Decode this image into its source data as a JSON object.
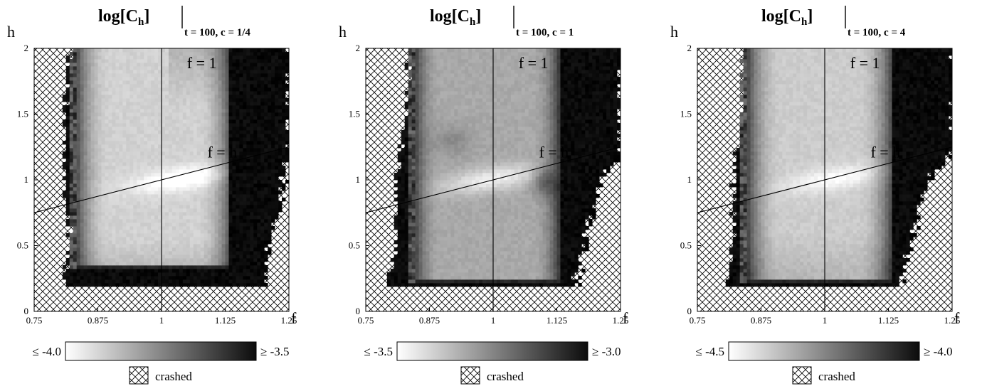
{
  "chart_data": [
    {
      "type": "heatmap",
      "title_main": "log[C",
      "title_sub": "h",
      "title_close": "]",
      "title_cond": "t = 100, c = 1/4",
      "xlabel": "f",
      "ylabel": "h",
      "xlim": [
        0.75,
        1.25
      ],
      "ylim": [
        0,
        2
      ],
      "x_ticks": [
        "0.75",
        "0.875",
        "1",
        "1.125",
        "1.25"
      ],
      "x_tick_values": [
        0.75,
        0.875,
        1,
        1.125,
        1.25
      ],
      "y_ticks": [
        "0",
        "0.5",
        "1",
        "1.5",
        "2"
      ],
      "y_tick_values": [
        0,
        0.5,
        1,
        1.5,
        2
      ],
      "lines": [
        {
          "label": "f = 1",
          "x": [
            1,
            1
          ],
          "y": [
            0,
            2
          ],
          "label_at": [
            1.05,
            1.85
          ]
        },
        {
          "label": "f = h",
          "x": [
            0.75,
            1.25
          ],
          "y": [
            0.75,
            1.25
          ],
          "label_at": [
            1.09,
            1.17
          ]
        }
      ],
      "colorbar": {
        "min_label": "≤ -4.0",
        "max_label": "≥ -3.5",
        "min": -4.0,
        "max": -3.5
      },
      "crashed_label": "crashed",
      "valid_region": {
        "bottom_h": 0.19,
        "bottom_f": [
          0.8,
          1.2
        ],
        "left_f": [
          [
            0,
            0.8
          ],
          [
            0.5,
            0.82
          ],
          [
            1,
            0.81
          ],
          [
            1.5,
            0.81
          ],
          [
            2,
            0.82
          ]
        ],
        "right_f": [
          [
            0.19,
            1.2
          ],
          [
            0.5,
            1.21
          ],
          [
            1.0,
            1.24
          ],
          [
            1.2,
            1.25
          ],
          [
            1.55,
            1.25
          ],
          [
            2,
            1.25
          ]
        ]
      },
      "core_region": {
        "f": [
          0.835,
          1.135
        ],
        "h_min": 0.33,
        "h_max": 2
      },
      "bright_ridge": {
        "f0": 1.04,
        "h0": 1.01
      }
    },
    {
      "type": "heatmap",
      "title_main": "log[C",
      "title_sub": "h",
      "title_close": "]",
      "title_cond": "t = 100, c = 1",
      "xlabel": "f",
      "ylabel": "h",
      "xlim": [
        0.75,
        1.25
      ],
      "ylim": [
        0,
        2
      ],
      "x_ticks": [
        "0.75",
        "0.875",
        "1",
        "1.125",
        "1.25"
      ],
      "x_tick_values": [
        0.75,
        0.875,
        1,
        1.125,
        1.25
      ],
      "y_ticks": [
        "0",
        "0.5",
        "1",
        "1.5",
        "2"
      ],
      "y_tick_values": [
        0,
        0.5,
        1,
        1.5,
        2
      ],
      "lines": [
        {
          "label": "f = 1",
          "x": [
            1,
            1
          ],
          "y": [
            0,
            2
          ],
          "label_at": [
            1.05,
            1.85
          ]
        },
        {
          "label": "f = h",
          "x": [
            0.75,
            1.25
          ],
          "y": [
            0.75,
            1.25
          ],
          "label_at": [
            1.09,
            1.17
          ]
        }
      ],
      "colorbar": {
        "min_label": "≤ -3.5",
        "max_label": "≥ -3.0",
        "min": -3.5,
        "max": -3.0
      },
      "crashed_label": "crashed",
      "valid_region": {
        "bottom_h": 0.19,
        "bottom_f": [
          0.79,
          1.16
        ],
        "left_f": [
          [
            0.19,
            0.79
          ],
          [
            0.5,
            0.81
          ],
          [
            1,
            0.81
          ],
          [
            1.5,
            0.83
          ],
          [
            2,
            0.835
          ]
        ],
        "right_f": [
          [
            0.19,
            1.16
          ],
          [
            0.5,
            1.18
          ],
          [
            1.0,
            1.21
          ],
          [
            1.2,
            1.25
          ],
          [
            1.55,
            1.25
          ],
          [
            2,
            1.25
          ]
        ]
      },
      "core_region": {
        "f": [
          0.845,
          1.13
        ],
        "h_min": 0.21,
        "h_max": 2
      },
      "bright_ridge": {
        "f0": 1.0,
        "h0": 1.01
      }
    },
    {
      "type": "heatmap",
      "title_main": "log[C",
      "title_sub": "h",
      "title_close": "]",
      "title_cond": "t = 100, c = 4",
      "xlabel": "f",
      "ylabel": "h",
      "xlim": [
        0.75,
        1.25
      ],
      "ylim": [
        0,
        2
      ],
      "x_ticks": [
        "0.75",
        "0.875",
        "1",
        "1.125",
        "1.25"
      ],
      "x_tick_values": [
        0.75,
        0.875,
        1,
        1.125,
        1.25
      ],
      "y_ticks": [
        "0",
        "0.5",
        "1",
        "1.5",
        "2"
      ],
      "y_tick_values": [
        0,
        0.5,
        1,
        1.5,
        2
      ],
      "lines": [
        {
          "label": "f = 1",
          "x": [
            1,
            1
          ],
          "y": [
            0,
            2
          ],
          "label_at": [
            1.05,
            1.85
          ]
        },
        {
          "label": "f = h",
          "x": [
            0.75,
            1.25
          ],
          "y": [
            0.75,
            1.25
          ],
          "label_at": [
            1.09,
            1.17
          ]
        }
      ],
      "colorbar": {
        "min_label": "≤ -4.5",
        "max_label": "≥ -4.0",
        "min": -4.5,
        "max": -4.0
      },
      "crashed_label": "crashed",
      "valid_region": {
        "bottom_h": 0.19,
        "bottom_f": [
          0.805,
          1.15
        ],
        "left_f": [
          [
            0.19,
            0.805
          ],
          [
            0.5,
            0.82
          ],
          [
            1,
            0.82
          ],
          [
            1.5,
            0.835
          ],
          [
            2,
            0.84
          ]
        ],
        "right_f": [
          [
            0.19,
            1.15
          ],
          [
            0.5,
            1.17
          ],
          [
            1.0,
            1.2
          ],
          [
            1.2,
            1.25
          ],
          [
            1.55,
            1.25
          ],
          [
            2,
            1.25
          ]
        ]
      },
      "core_region": {
        "f": [
          0.85,
          1.13
        ],
        "h_min": 0.21,
        "h_max": 2
      },
      "bright_ridge": {
        "f0": 1.02,
        "h0": 1.01
      }
    }
  ]
}
